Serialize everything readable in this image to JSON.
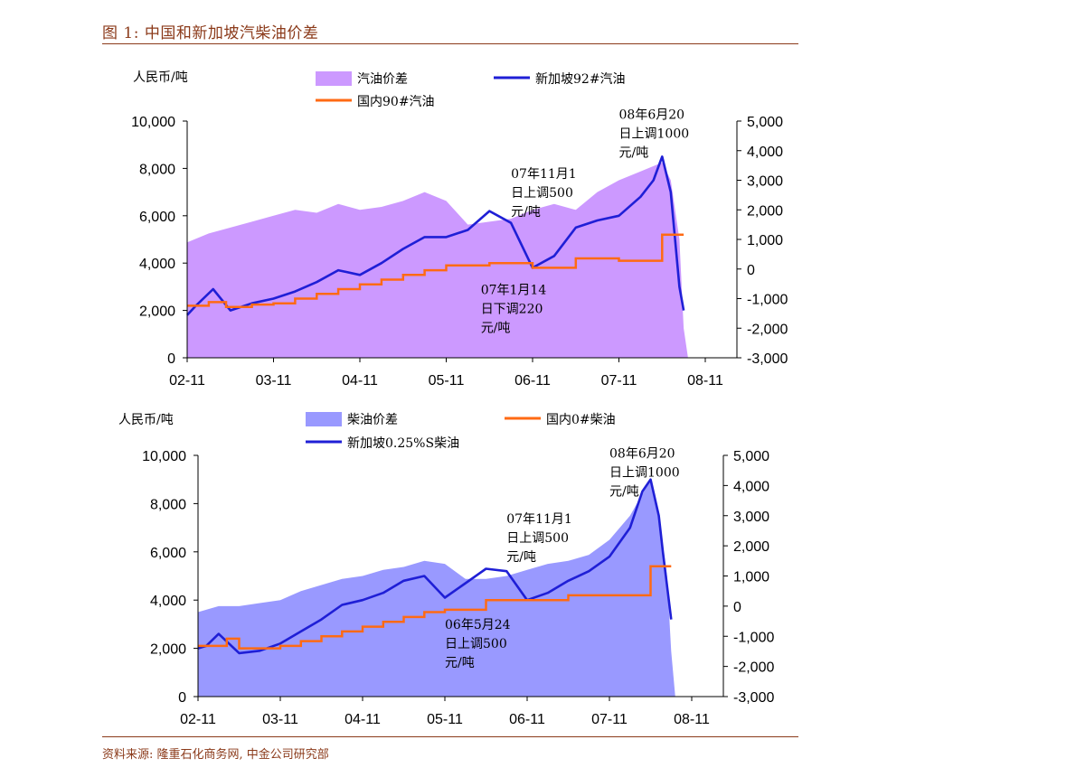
{
  "header": {
    "title": "图 1: 中国和新加坡汽柴油价差"
  },
  "footer": {
    "source": "资料来源: 隆重石化商务网, 中金公司研究部"
  },
  "chart_data": [
    {
      "type": "line",
      "unit_label": "人民币/吨",
      "x_ticks": [
        "02-11",
        "03-11",
        "04-11",
        "05-11",
        "06-11",
        "07-11",
        "08-11"
      ],
      "ylim_left": [
        0,
        10000
      ],
      "yticks_left": [
        "10,000",
        "8,000",
        "6,000",
        "4,000",
        "2,000",
        "0"
      ],
      "ylim_right": [
        -3000,
        5000
      ],
      "yticks_right": [
        "5,000",
        "4,000",
        "3,000",
        "2,000",
        "1,000",
        "0",
        "-1,000",
        "-2,000",
        "-3,000"
      ],
      "legend": [
        "汽油价差",
        "新加坡92#汽油",
        "国内90#汽油"
      ],
      "colors": {
        "spread": "#CC99FF",
        "singapore": "#1F1FD6",
        "domestic": "#FF6A13"
      },
      "series": [
        {
          "name": "汽油价差",
          "axis": "right",
          "kind": "area",
          "x": [
            0,
            0.25,
            0.5,
            0.75,
            1,
            1.25,
            1.5,
            1.75,
            2,
            2.25,
            2.5,
            2.75,
            3,
            3.25,
            3.5,
            3.75,
            4,
            4.25,
            4.5,
            4.75,
            5,
            5.25,
            5.5,
            5.6,
            5.7,
            5.75,
            5.8
          ],
          "y": [
            900,
            1200,
            1400,
            1600,
            1800,
            2000,
            1900,
            2200,
            2000,
            2100,
            2300,
            2600,
            2300,
            1500,
            1600,
            1700,
            2000,
            2200,
            2000,
            2600,
            3000,
            3300,
            3600,
            3000,
            1000,
            -2000,
            -3000
          ]
        },
        {
          "name": "新加坡92#汽油",
          "axis": "left",
          "kind": "line",
          "x": [
            0,
            0.1,
            0.3,
            0.5,
            0.75,
            1,
            1.25,
            1.5,
            1.75,
            2,
            2.25,
            2.5,
            2.75,
            3,
            3.25,
            3.5,
            3.75,
            4,
            4.25,
            4.5,
            4.75,
            5,
            5.25,
            5.4,
            5.5,
            5.6,
            5.7,
            5.75
          ],
          "y": [
            1800,
            2200,
            2900,
            2000,
            2300,
            2500,
            2800,
            3200,
            3700,
            3500,
            4000,
            4600,
            5100,
            5100,
            5400,
            6200,
            5700,
            3800,
            4300,
            5500,
            5800,
            6000,
            6800,
            7500,
            8500,
            7000,
            3000,
            2000
          ]
        },
        {
          "name": "国内90#汽油",
          "axis": "left",
          "kind": "step",
          "x": [
            0,
            0.25,
            0.45,
            0.75,
            1.0,
            1.25,
            1.5,
            1.75,
            2.0,
            2.25,
            2.5,
            2.75,
            3.0,
            3.5,
            4.0,
            4.5,
            5.0,
            5.5,
            5.75
          ],
          "y": [
            2200,
            2350,
            2150,
            2250,
            2300,
            2500,
            2700,
            2900,
            3100,
            3300,
            3500,
            3700,
            3900,
            4000,
            3800,
            4200,
            4100,
            5200,
            5200
          ]
        }
      ],
      "annotations": [
        {
          "lines": [
            "08年6月20",
            "日上调1000",
            "元/吨"
          ],
          "x": 5.0,
          "y": 10100
        },
        {
          "lines": [
            "07年11月1",
            "日上调500",
            "元/吨"
          ],
          "x": 3.75,
          "y": 7600
        },
        {
          "lines": [
            "07年1月14",
            "日下调220",
            "元/吨"
          ],
          "x": 3.4,
          "y": 2700
        }
      ]
    },
    {
      "type": "line",
      "unit_label": "人民币/吨",
      "x_ticks": [
        "02-11",
        "03-11",
        "04-11",
        "05-11",
        "06-11",
        "07-11",
        "08-11"
      ],
      "ylim_left": [
        0,
        10000
      ],
      "yticks_left": [
        "10,000",
        "8,000",
        "6,000",
        "4,000",
        "2,000",
        "0"
      ],
      "ylim_right": [
        -3000,
        5000
      ],
      "yticks_right": [
        "5,000",
        "4,000",
        "3,000",
        "2,000",
        "1,000",
        "0",
        "-1,000",
        "-2,000",
        "-3,000"
      ],
      "legend": [
        "柴油价差",
        "国内0#柴油",
        "新加坡0.25%S柴油"
      ],
      "colors": {
        "spread": "#9999FF",
        "singapore": "#1F1FD6",
        "domestic": "#FF6A13"
      },
      "series": [
        {
          "name": "柴油价差",
          "axis": "right",
          "kind": "area",
          "x": [
            0,
            0.25,
            0.5,
            0.75,
            1,
            1.25,
            1.5,
            1.75,
            2,
            2.25,
            2.5,
            2.75,
            3,
            3.25,
            3.5,
            3.75,
            4,
            4.25,
            4.5,
            4.75,
            5,
            5.25,
            5.5,
            5.6,
            5.7,
            5.75,
            5.8
          ],
          "y": [
            -200,
            0,
            0,
            100,
            200,
            500,
            700,
            900,
            1000,
            1200,
            1300,
            1500,
            1400,
            900,
            900,
            1000,
            1200,
            1400,
            1500,
            1700,
            2200,
            3000,
            4200,
            3000,
            1000,
            -1500,
            -3000
          ]
        },
        {
          "name": "新加坡0.25%S柴油",
          "axis": "left",
          "kind": "line",
          "x": [
            0,
            0.1,
            0.25,
            0.5,
            0.75,
            1,
            1.25,
            1.5,
            1.75,
            2,
            2.25,
            2.5,
            2.75,
            3,
            3.25,
            3.5,
            3.75,
            4,
            4.25,
            4.5,
            4.75,
            5,
            5.25,
            5.4,
            5.5,
            5.6,
            5.65,
            5.75
          ],
          "y": [
            2000,
            2100,
            2600,
            1800,
            1900,
            2200,
            2700,
            3200,
            3800,
            4000,
            4300,
            4800,
            5000,
            4100,
            4700,
            5300,
            5200,
            4000,
            4300,
            4800,
            5200,
            5800,
            7000,
            8500,
            9000,
            7500,
            6000,
            3200
          ]
        },
        {
          "name": "国内0#柴油",
          "axis": "left",
          "kind": "step",
          "x": [
            0,
            0.35,
            0.5,
            0.75,
            1.0,
            1.25,
            1.5,
            1.75,
            2.0,
            2.25,
            2.5,
            2.75,
            3.0,
            3.5,
            4.0,
            4.5,
            5.0,
            5.5,
            5.75
          ],
          "y": [
            2100,
            2400,
            2000,
            2000,
            2100,
            2300,
            2500,
            2700,
            2900,
            3100,
            3300,
            3500,
            3600,
            4000,
            4000,
            4200,
            4200,
            5400,
            5400
          ]
        }
      ],
      "annotations": [
        {
          "lines": [
            "08年6月20",
            "日上调1000",
            "元/吨"
          ],
          "x": 5.0,
          "y": 9900
        },
        {
          "lines": [
            "07年11月1",
            "日上调500",
            "元/吨"
          ],
          "x": 3.75,
          "y": 7200
        },
        {
          "lines": [
            "06年5月24",
            "日上调500",
            "元/吨"
          ],
          "x": 3.0,
          "y": 2800
        }
      ]
    }
  ]
}
